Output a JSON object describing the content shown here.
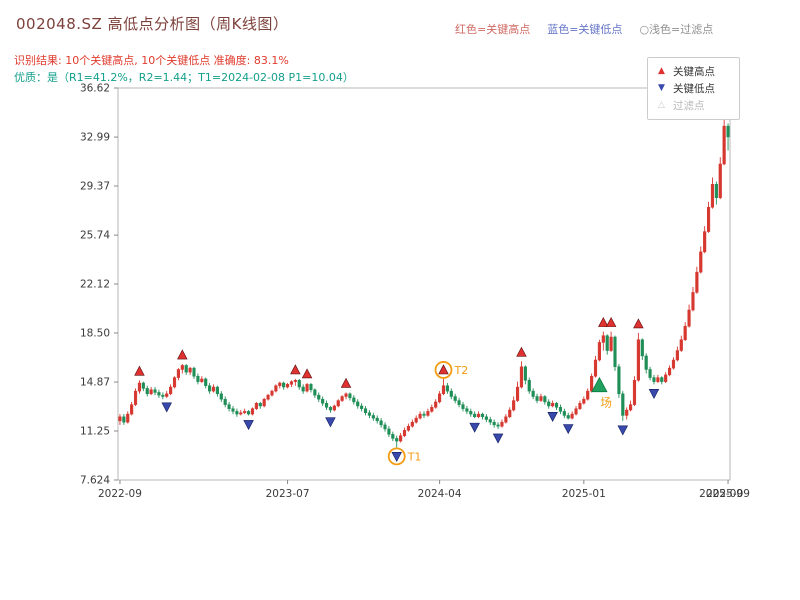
{
  "header": {
    "title": "002048.SZ 高低点分析图（周K线图）",
    "legend_top": [
      {
        "label": "红色=关键高点",
        "color": "#d06a63"
      },
      {
        "label": "蓝色=关键低点",
        "color": "#6676c8"
      },
      {
        "label": "○浅色=过滤点",
        "color": "#8f8f8f"
      }
    ],
    "result_line": "识别结果: 10个关键高点, 10个关键低点  准确度: 83.1%",
    "result_color": "#e03a2c",
    "quality_line": "优质：是（R1=41.2%，R2=1.44；T1=2024-02-08 P1=10.04）",
    "quality_color": "#13a08b"
  },
  "chart_data": {
    "type": "candlestick",
    "title": "002048.SZ 高低点分析图（周K线图）",
    "y_ticks": [
      "36.62",
      "32.99",
      "29.37",
      "25.74",
      "22.12",
      "18.50",
      "14.87",
      "11.25",
      "7.624"
    ],
    "y_range": [
      7.624,
      36.62
    ],
    "x_ticks": [
      {
        "label": "2022-09",
        "week": 0
      },
      {
        "label": "2023-07",
        "week": 43
      },
      {
        "label": "2024-04",
        "week": 82
      },
      {
        "label": "2025-01",
        "week": 119
      },
      {
        "label": "2025-09",
        "week": 156
      }
    ],
    "x_tick_overlap_label": "2025-09",
    "legend_items": [
      {
        "label": "关键高点",
        "icon": "▲",
        "marker": "red-up-triangle"
      },
      {
        "label": "关键低点",
        "icon": "▼",
        "marker": "blue-down-triangle"
      },
      {
        "label": "过滤点",
        "icon": "△",
        "marker": "open-triangle"
      }
    ],
    "colors": {
      "up": "#d6372f",
      "down": "#1f8e57",
      "key_high": "#e03131",
      "key_low": "#3949ab",
      "filtered": "#c9c9c9",
      "entry": "#21a05f",
      "annotation": "#f39c12",
      "frame": "#b7b7b7",
      "tick_text": "#3a3a3a"
    },
    "candles": [
      [
        12.0,
        12.5,
        11.7,
        12.3
      ],
      [
        12.3,
        12.5,
        11.7,
        11.9
      ],
      [
        11.9,
        12.7,
        11.8,
        12.5
      ],
      [
        12.5,
        13.4,
        12.4,
        13.2
      ],
      [
        13.2,
        14.4,
        13.1,
        14.2
      ],
      [
        14.2,
        15.0,
        14.0,
        14.8
      ],
      [
        14.8,
        14.9,
        14.2,
        14.4
      ],
      [
        14.4,
        14.6,
        13.8,
        14.0
      ],
      [
        14.0,
        14.5,
        13.9,
        14.3
      ],
      [
        14.3,
        14.5,
        13.9,
        14.1
      ],
      [
        14.1,
        14.3,
        13.7,
        13.9
      ],
      [
        13.9,
        14.1,
        13.6,
        13.8
      ],
      [
        13.8,
        14.2,
        13.7,
        14.0
      ],
      [
        14.0,
        14.7,
        13.9,
        14.5
      ],
      [
        14.5,
        15.3,
        14.4,
        15.2
      ],
      [
        15.2,
        15.9,
        15.0,
        15.8
      ],
      [
        15.8,
        16.2,
        15.5,
        16.1
      ],
      [
        16.1,
        16.2,
        15.4,
        15.6
      ],
      [
        15.6,
        16.0,
        15.4,
        15.9
      ],
      [
        15.9,
        16.0,
        15.1,
        15.3
      ],
      [
        15.3,
        15.5,
        14.7,
        14.9
      ],
      [
        14.9,
        15.3,
        14.8,
        15.1
      ],
      [
        15.1,
        15.2,
        14.4,
        14.6
      ],
      [
        14.6,
        14.8,
        14.0,
        14.2
      ],
      [
        14.2,
        14.7,
        14.1,
        14.5
      ],
      [
        14.5,
        14.6,
        13.8,
        14.0
      ],
      [
        14.0,
        14.2,
        13.4,
        13.6
      ],
      [
        13.6,
        13.8,
        13.0,
        13.2
      ],
      [
        13.2,
        13.4,
        12.7,
        12.9
      ],
      [
        12.9,
        13.1,
        12.5,
        12.7
      ],
      [
        12.7,
        12.9,
        12.3,
        12.5
      ],
      [
        12.5,
        12.8,
        12.4,
        12.6
      ],
      [
        12.6,
        12.9,
        12.5,
        12.7
      ],
      [
        12.7,
        12.8,
        12.4,
        12.5
      ],
      [
        12.5,
        13.0,
        12.4,
        12.9
      ],
      [
        12.9,
        13.4,
        12.8,
        13.3
      ],
      [
        13.3,
        13.4,
        12.9,
        13.1
      ],
      [
        13.1,
        13.7,
        13.0,
        13.6
      ],
      [
        13.6,
        14.0,
        13.5,
        13.9
      ],
      [
        13.9,
        14.3,
        13.8,
        14.2
      ],
      [
        14.2,
        14.7,
        14.1,
        14.6
      ],
      [
        14.6,
        14.9,
        14.4,
        14.8
      ],
      [
        14.8,
        14.9,
        14.3,
        14.5
      ],
      [
        14.5,
        14.8,
        14.4,
        14.7
      ],
      [
        14.7,
        15.0,
        14.5,
        14.9
      ],
      [
        14.9,
        15.1,
        14.6,
        15.0
      ],
      [
        15.0,
        15.1,
        14.3,
        14.5
      ],
      [
        14.5,
        14.7,
        14.0,
        14.2
      ],
      [
        14.2,
        14.8,
        14.1,
        14.7
      ],
      [
        14.7,
        14.8,
        14.1,
        14.3
      ],
      [
        14.3,
        14.4,
        13.7,
        13.9
      ],
      [
        13.9,
        14.1,
        13.4,
        13.6
      ],
      [
        13.6,
        13.8,
        13.1,
        13.3
      ],
      [
        13.3,
        13.5,
        12.8,
        13.0
      ],
      [
        13.0,
        13.1,
        12.6,
        12.8
      ],
      [
        12.8,
        13.2,
        12.7,
        13.1
      ],
      [
        13.1,
        13.6,
        13.0,
        13.5
      ],
      [
        13.5,
        13.9,
        13.4,
        13.8
      ],
      [
        13.8,
        14.1,
        13.6,
        14.0
      ],
      [
        14.0,
        14.1,
        13.5,
        13.7
      ],
      [
        13.7,
        13.9,
        13.2,
        13.4
      ],
      [
        13.4,
        13.6,
        12.9,
        13.1
      ],
      [
        13.1,
        13.3,
        12.7,
        12.9
      ],
      [
        12.9,
        13.1,
        12.4,
        12.6
      ],
      [
        12.6,
        12.8,
        12.2,
        12.4
      ],
      [
        12.4,
        12.6,
        12.0,
        12.2
      ],
      [
        12.2,
        12.4,
        11.8,
        12.0
      ],
      [
        12.0,
        12.2,
        11.5,
        11.7
      ],
      [
        11.7,
        11.9,
        11.2,
        11.4
      ],
      [
        11.4,
        11.6,
        10.8,
        11.0
      ],
      [
        11.0,
        11.2,
        10.5,
        10.7
      ],
      [
        10.7,
        10.9,
        10.04,
        10.5
      ],
      [
        10.5,
        11.1,
        10.4,
        10.9
      ],
      [
        10.9,
        11.5,
        10.8,
        11.3
      ],
      [
        11.3,
        11.8,
        11.2,
        11.6
      ],
      [
        11.6,
        12.1,
        11.5,
        11.9
      ],
      [
        11.9,
        12.4,
        11.8,
        12.2
      ],
      [
        12.2,
        12.7,
        12.1,
        12.5
      ],
      [
        12.5,
        12.7,
        12.2,
        12.4
      ],
      [
        12.4,
        12.9,
        12.3,
        12.7
      ],
      [
        12.7,
        13.2,
        12.6,
        13.0
      ],
      [
        13.0,
        13.6,
        12.9,
        13.4
      ],
      [
        13.4,
        14.2,
        13.3,
        14.0
      ],
      [
        14.0,
        15.1,
        13.9,
        14.6
      ],
      [
        14.6,
        14.8,
        14.0,
        14.2
      ],
      [
        14.2,
        14.4,
        13.6,
        13.8
      ],
      [
        13.8,
        14.0,
        13.3,
        13.5
      ],
      [
        13.5,
        13.7,
        13.0,
        13.2
      ],
      [
        13.2,
        13.4,
        12.7,
        12.9
      ],
      [
        12.9,
        13.1,
        12.5,
        12.7
      ],
      [
        12.7,
        12.9,
        12.3,
        12.5
      ],
      [
        12.5,
        12.7,
        12.2,
        12.3
      ],
      [
        12.3,
        12.7,
        12.2,
        12.5
      ],
      [
        12.5,
        12.6,
        12.1,
        12.3
      ],
      [
        12.3,
        12.5,
        11.9,
        12.1
      ],
      [
        12.1,
        12.3,
        11.7,
        11.9
      ],
      [
        11.9,
        12.1,
        11.5,
        11.7
      ],
      [
        11.7,
        11.9,
        11.4,
        11.6
      ],
      [
        11.6,
        12.1,
        11.5,
        11.9
      ],
      [
        11.9,
        12.5,
        11.8,
        12.3
      ],
      [
        12.3,
        13.0,
        12.2,
        12.8
      ],
      [
        12.8,
        13.8,
        12.7,
        13.5
      ],
      [
        13.5,
        14.9,
        13.4,
        14.5
      ],
      [
        14.5,
        16.4,
        14.4,
        16.0
      ],
      [
        16.0,
        16.1,
        14.7,
        15.0
      ],
      [
        15.0,
        15.2,
        14.0,
        14.2
      ],
      [
        14.2,
        14.4,
        13.6,
        13.8
      ],
      [
        13.8,
        14.0,
        13.3,
        13.5
      ],
      [
        13.5,
        14.0,
        13.4,
        13.8
      ],
      [
        13.8,
        13.9,
        13.2,
        13.4
      ],
      [
        13.4,
        13.6,
        12.9,
        13.1
      ],
      [
        13.1,
        13.5,
        13.0,
        13.3
      ],
      [
        13.3,
        13.4,
        12.8,
        13.0
      ],
      [
        13.0,
        13.2,
        12.5,
        12.7
      ],
      [
        12.7,
        12.9,
        12.2,
        12.4
      ],
      [
        12.4,
        12.6,
        12.1,
        12.2
      ],
      [
        12.2,
        12.7,
        12.1,
        12.5
      ],
      [
        12.5,
        13.1,
        12.4,
        12.9
      ],
      [
        12.9,
        13.5,
        12.8,
        13.3
      ],
      [
        13.3,
        13.8,
        13.2,
        13.6
      ],
      [
        13.6,
        14.4,
        13.5,
        14.2
      ],
      [
        14.2,
        15.5,
        14.1,
        15.3
      ],
      [
        15.3,
        16.8,
        15.2,
        16.5
      ],
      [
        16.5,
        18.0,
        16.4,
        17.8
      ],
      [
        17.8,
        18.6,
        17.2,
        18.3
      ],
      [
        18.3,
        18.4,
        16.9,
        17.2
      ],
      [
        17.2,
        18.6,
        17.1,
        18.2
      ],
      [
        18.2,
        18.3,
        15.7,
        16.0
      ],
      [
        16.0,
        16.2,
        13.7,
        14.0
      ],
      [
        14.0,
        14.2,
        12.0,
        12.4
      ],
      [
        12.4,
        13.0,
        12.1,
        12.8
      ],
      [
        12.8,
        13.5,
        12.7,
        13.2
      ],
      [
        13.2,
        15.3,
        13.1,
        15.0
      ],
      [
        15.0,
        18.5,
        14.9,
        18.0
      ],
      [
        18.0,
        18.1,
        16.5,
        16.8
      ],
      [
        16.8,
        17.0,
        15.5,
        15.8
      ],
      [
        15.8,
        16.0,
        15.0,
        15.2
      ],
      [
        15.2,
        15.4,
        14.7,
        14.9
      ],
      [
        14.9,
        15.4,
        14.8,
        15.2
      ],
      [
        15.2,
        15.3,
        14.7,
        14.9
      ],
      [
        14.9,
        15.6,
        14.8,
        15.4
      ],
      [
        15.4,
        16.1,
        15.3,
        15.9
      ],
      [
        15.9,
        16.7,
        15.8,
        16.5
      ],
      [
        16.5,
        17.5,
        16.4,
        17.2
      ],
      [
        17.2,
        18.3,
        17.1,
        18.0
      ],
      [
        18.0,
        19.3,
        17.9,
        19.0
      ],
      [
        19.0,
        20.6,
        18.9,
        20.2
      ],
      [
        20.2,
        21.9,
        20.1,
        21.5
      ],
      [
        21.5,
        23.4,
        21.4,
        23.0
      ],
      [
        23.0,
        24.9,
        22.9,
        24.5
      ],
      [
        24.5,
        26.4,
        24.4,
        26.0
      ],
      [
        26.0,
        28.2,
        25.9,
        27.8
      ],
      [
        27.8,
        30.0,
        27.7,
        29.5
      ],
      [
        29.5,
        29.7,
        28.0,
        28.5
      ],
      [
        28.5,
        31.5,
        28.4,
        31.0
      ],
      [
        31.0,
        34.8,
        30.9,
        33.8
      ],
      [
        33.8,
        34.0,
        32.0,
        33.0
      ]
    ],
    "key_highs": [
      {
        "week": 5,
        "price": 15.0
      },
      {
        "week": 16,
        "price": 16.2
      },
      {
        "week": 45,
        "price": 15.1
      },
      {
        "week": 48,
        "price": 14.8
      },
      {
        "week": 58,
        "price": 14.1
      },
      {
        "week": 83,
        "price": 15.1
      },
      {
        "week": 103,
        "price": 16.4
      },
      {
        "week": 124,
        "price": 18.6
      },
      {
        "week": 126,
        "price": 18.6
      },
      {
        "week": 133,
        "price": 18.5
      }
    ],
    "key_lows": [
      {
        "week": 12,
        "price": 13.7
      },
      {
        "week": 33,
        "price": 12.4
      },
      {
        "week": 54,
        "price": 12.6
      },
      {
        "week": 71,
        "price": 10.04
      },
      {
        "week": 91,
        "price": 12.2
      },
      {
        "week": 97,
        "price": 11.4
      },
      {
        "week": 111,
        "price": 13.0
      },
      {
        "week": 115,
        "price": 12.1
      },
      {
        "week": 129,
        "price": 12.0
      },
      {
        "week": 137,
        "price": 14.7
      }
    ],
    "annotations": [
      {
        "type": "circle",
        "week": 71,
        "price": 10.04,
        "dir": "low",
        "label": "T1"
      },
      {
        "type": "circle",
        "week": 83,
        "price": 15.1,
        "dir": "high",
        "label": "T2"
      },
      {
        "type": "entry",
        "week": 123,
        "price": 14.6,
        "label": "场"
      }
    ]
  }
}
